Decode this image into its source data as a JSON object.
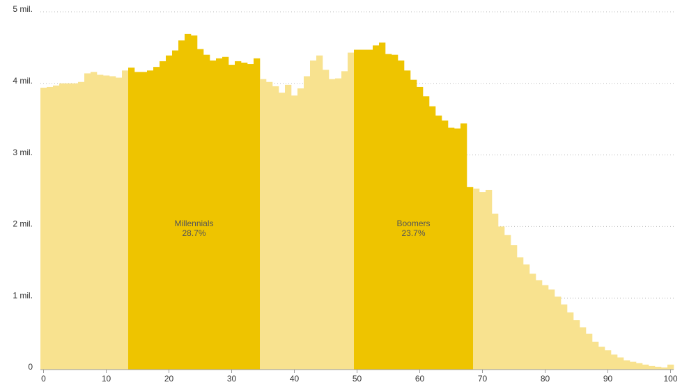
{
  "chart_data": {
    "type": "bar",
    "x": [
      0,
      1,
      2,
      3,
      4,
      5,
      6,
      7,
      8,
      9,
      10,
      11,
      12,
      13,
      14,
      15,
      16,
      17,
      18,
      19,
      20,
      21,
      22,
      23,
      24,
      25,
      26,
      27,
      28,
      29,
      30,
      31,
      32,
      33,
      34,
      35,
      36,
      37,
      38,
      39,
      40,
      41,
      42,
      43,
      44,
      45,
      46,
      47,
      48,
      49,
      50,
      51,
      52,
      53,
      54,
      55,
      56,
      57,
      58,
      59,
      60,
      61,
      62,
      63,
      64,
      65,
      66,
      67,
      68,
      69,
      70,
      71,
      72,
      73,
      74,
      75,
      76,
      77,
      78,
      79,
      80,
      81,
      82,
      83,
      84,
      85,
      86,
      87,
      88,
      89,
      90,
      91,
      92,
      93,
      94,
      95,
      96,
      97,
      98,
      99,
      100
    ],
    "values": [
      3.94,
      3.95,
      3.97,
      4.0,
      4.0,
      4.0,
      4.02,
      4.14,
      4.16,
      4.12,
      4.11,
      4.1,
      4.08,
      4.18,
      4.22,
      4.16,
      4.16,
      4.18,
      4.23,
      4.31,
      4.39,
      4.46,
      4.6,
      4.69,
      4.67,
      4.48,
      4.4,
      4.32,
      4.35,
      4.37,
      4.26,
      4.31,
      4.29,
      4.27,
      4.35,
      4.06,
      4.02,
      3.96,
      3.87,
      3.98,
      3.83,
      3.93,
      4.1,
      4.32,
      4.39,
      4.19,
      4.06,
      4.07,
      4.17,
      4.43,
      4.47,
      4.47,
      4.47,
      4.53,
      4.57,
      4.41,
      4.4,
      4.32,
      4.18,
      4.05,
      3.95,
      3.82,
      3.68,
      3.55,
      3.48,
      3.38,
      3.37,
      3.44,
      2.55,
      2.53,
      2.48,
      2.51,
      2.18,
      2.0,
      1.88,
      1.74,
      1.57,
      1.47,
      1.34,
      1.25,
      1.18,
      1.12,
      1.02,
      0.91,
      0.8,
      0.69,
      0.59,
      0.5,
      0.39,
      0.32,
      0.27,
      0.21,
      0.17,
      0.13,
      0.11,
      0.09,
      0.07,
      0.05,
      0.04,
      0.03,
      0.07
    ],
    "color": "#f8e28f",
    "highlights": [
      {
        "name": "Millennials",
        "label": "28.7%",
        "start": 14,
        "end": 34,
        "color": "#eec400"
      },
      {
        "name": "Boomers",
        "label": "23.7%",
        "start": 50,
        "end": 68,
        "color": "#eec400"
      }
    ],
    "xlim": [
      -0.5,
      100.5
    ],
    "xticks": [
      0,
      10,
      20,
      30,
      40,
      50,
      60,
      70,
      80,
      90,
      100
    ],
    "ylim": [
      0,
      5
    ],
    "yticks": [
      0,
      {
        "value": 1,
        "label": "1 mil."
      },
      {
        "value": 2,
        "label": "2 mil."
      },
      {
        "value": 3,
        "label": "3 mil."
      },
      {
        "value": 4,
        "label": "4 mil."
      },
      {
        "value": 5,
        "label": "5 mil."
      }
    ],
    "grid": true
  }
}
